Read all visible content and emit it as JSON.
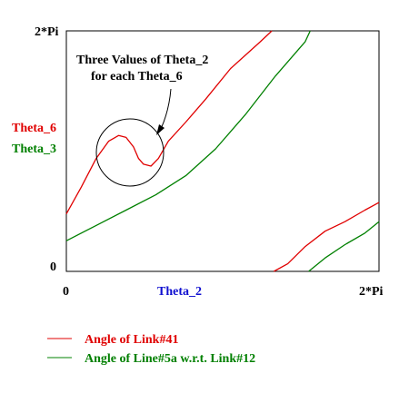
{
  "chart_data": {
    "type": "line",
    "xlim": [
      0,
      6.2832
    ],
    "ylim": [
      0,
      6.2832
    ],
    "x_ticks": {
      "min": "0",
      "max": "2*Pi"
    },
    "y_ticks": {
      "min": "0",
      "max": "2*Pi"
    },
    "xlabel": "Theta_2",
    "ylabel_series": [
      {
        "text": "Theta_6",
        "color": "#e00000"
      },
      {
        "text": "Theta_3",
        "color": "#008000"
      }
    ],
    "annotation": {
      "line1": "Three Values of Theta_2",
      "line2": "for each Theta_6"
    },
    "series": [
      {
        "name": "Angle of Link#41",
        "color": "#e00000",
        "segments": [
          [
            [
              0,
              1.5
            ],
            [
              0.3,
              2.2
            ],
            [
              0.6,
              2.95
            ],
            [
              0.85,
              3.4
            ],
            [
              1.05,
              3.55
            ],
            [
              1.2,
              3.5
            ],
            [
              1.35,
              3.25
            ],
            [
              1.45,
              2.95
            ],
            [
              1.55,
              2.8
            ],
            [
              1.7,
              2.75
            ],
            [
              1.85,
              2.95
            ],
            [
              2.05,
              3.4
            ],
            [
              2.4,
              3.9
            ],
            [
              2.8,
              4.5
            ],
            [
              3.3,
              5.3
            ],
            [
              3.9,
              6.0
            ],
            [
              4.13,
              6.2832
            ]
          ],
          [
            [
              4.17,
              0
            ],
            [
              4.45,
              0.2
            ],
            [
              4.8,
              0.65
            ],
            [
              5.2,
              1.05
            ],
            [
              5.6,
              1.3
            ],
            [
              6.0,
              1.6
            ],
            [
              6.2832,
              1.8
            ]
          ]
        ]
      },
      {
        "name": "Angle of Line#5a w.r.t. Link#12",
        "color": "#008000",
        "segments": [
          [
            [
              0,
              0.8
            ],
            [
              0.6,
              1.2
            ],
            [
              1.2,
              1.6
            ],
            [
              1.8,
              2.0
            ],
            [
              2.4,
              2.5
            ],
            [
              3.0,
              3.2
            ],
            [
              3.6,
              4.1
            ],
            [
              4.2,
              5.1
            ],
            [
              4.8,
              6.0
            ],
            [
              4.9,
              6.2832
            ]
          ],
          [
            [
              4.87,
              0
            ],
            [
              5.2,
              0.35
            ],
            [
              5.6,
              0.7
            ],
            [
              6.0,
              1.0
            ],
            [
              6.2832,
              1.3
            ]
          ]
        ]
      }
    ],
    "legend_position": "bottom-left"
  }
}
